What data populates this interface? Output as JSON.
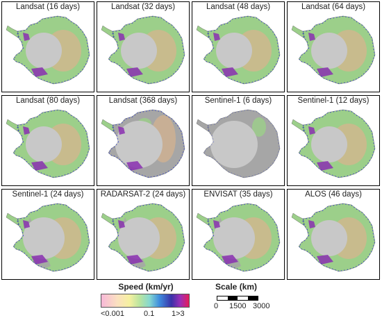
{
  "panels": [
    {
      "title": "Landsat (16 days)",
      "coverage": "full"
    },
    {
      "title": "Landsat (32 days)",
      "coverage": "full"
    },
    {
      "title": "Landsat (48 days)",
      "coverage": "full"
    },
    {
      "title": "Landsat (64 days)",
      "coverage": "full"
    },
    {
      "title": "Landsat (80 days)",
      "coverage": "full"
    },
    {
      "title": "Landsat (368 days)",
      "coverage": "sparse"
    },
    {
      "title": "Sentinel-1 (6 days)",
      "coverage": "minimal"
    },
    {
      "title": "Sentinel-1 (12 days)",
      "coverage": "full"
    },
    {
      "title": "Sentinel-1 (24 days)",
      "coverage": "partial"
    },
    {
      "title": "RADARSAT-2 (24 days)",
      "coverage": "partial"
    },
    {
      "title": "ENVISAT (35 days)",
      "coverage": "partial"
    },
    {
      "title": "ALOS (46 days)",
      "coverage": "full"
    }
  ],
  "legend": {
    "speed_title": "Speed (km/yr)",
    "speed_ticks": [
      "<0.001",
      "0.1",
      "1>3"
    ],
    "scale_title": "Scale (km)",
    "scale_ticks": [
      "0",
      "1500",
      "3000"
    ]
  },
  "colors": {
    "ice_grey": "#a6a6a6",
    "slow_green": "#9ccf8a",
    "mid_tan": "#d7b48e",
    "fast_blue": "#2e3dc8",
    "shelf_purple": "#8a2fb0",
    "pole_hole": "#c8c8c8"
  }
}
